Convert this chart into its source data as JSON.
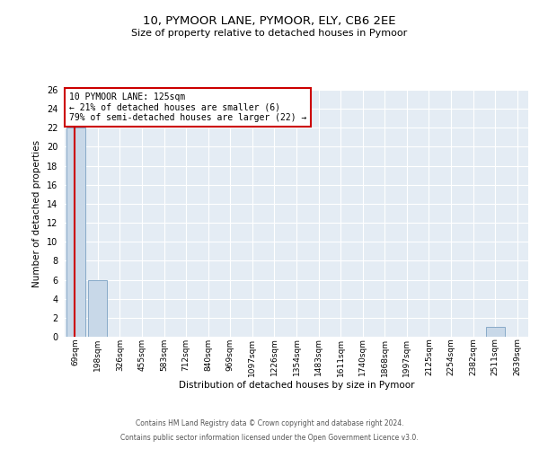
{
  "title": "10, PYMOOR LANE, PYMOOR, ELY, CB6 2EE",
  "subtitle": "Size of property relative to detached houses in Pymoor",
  "xlabel": "Distribution of detached houses by size in Pymoor",
  "ylabel": "Number of detached properties",
  "bin_labels": [
    "69sqm",
    "198sqm",
    "326sqm",
    "455sqm",
    "583sqm",
    "712sqm",
    "840sqm",
    "969sqm",
    "1097sqm",
    "1226sqm",
    "1354sqm",
    "1483sqm",
    "1611sqm",
    "1740sqm",
    "1868sqm",
    "1997sqm",
    "2125sqm",
    "2254sqm",
    "2382sqm",
    "2511sqm",
    "2639sqm"
  ],
  "bar_heights": [
    22,
    6,
    0,
    0,
    0,
    0,
    0,
    0,
    0,
    0,
    0,
    0,
    0,
    0,
    0,
    0,
    0,
    0,
    0,
    1,
    0
  ],
  "bar_color": "#c8d8e8",
  "bar_edgecolor": "#88aac8",
  "annotation_text_line1": "10 PYMOOR LANE: 125sqm",
  "annotation_text_line2": "← 21% of detached houses are smaller (6)",
  "annotation_text_line3": "79% of semi-detached houses are larger (22) →",
  "vline_color": "#cc0000",
  "annotation_box_color": "#cc0000",
  "ylim": [
    0,
    26
  ],
  "ytick_step": 2,
  "footer_line1": "Contains HM Land Registry data © Crown copyright and database right 2024.",
  "footer_line2": "Contains public sector information licensed under the Open Government Licence v3.0.",
  "plot_bg_color": "#e4ecf4",
  "grid_color": "#ffffff",
  "title_fontsize": 9.5,
  "subtitle_fontsize": 8,
  "axis_label_fontsize": 7.5,
  "tick_fontsize": 7,
  "annotation_fontsize": 7,
  "footer_fontsize": 5.5
}
